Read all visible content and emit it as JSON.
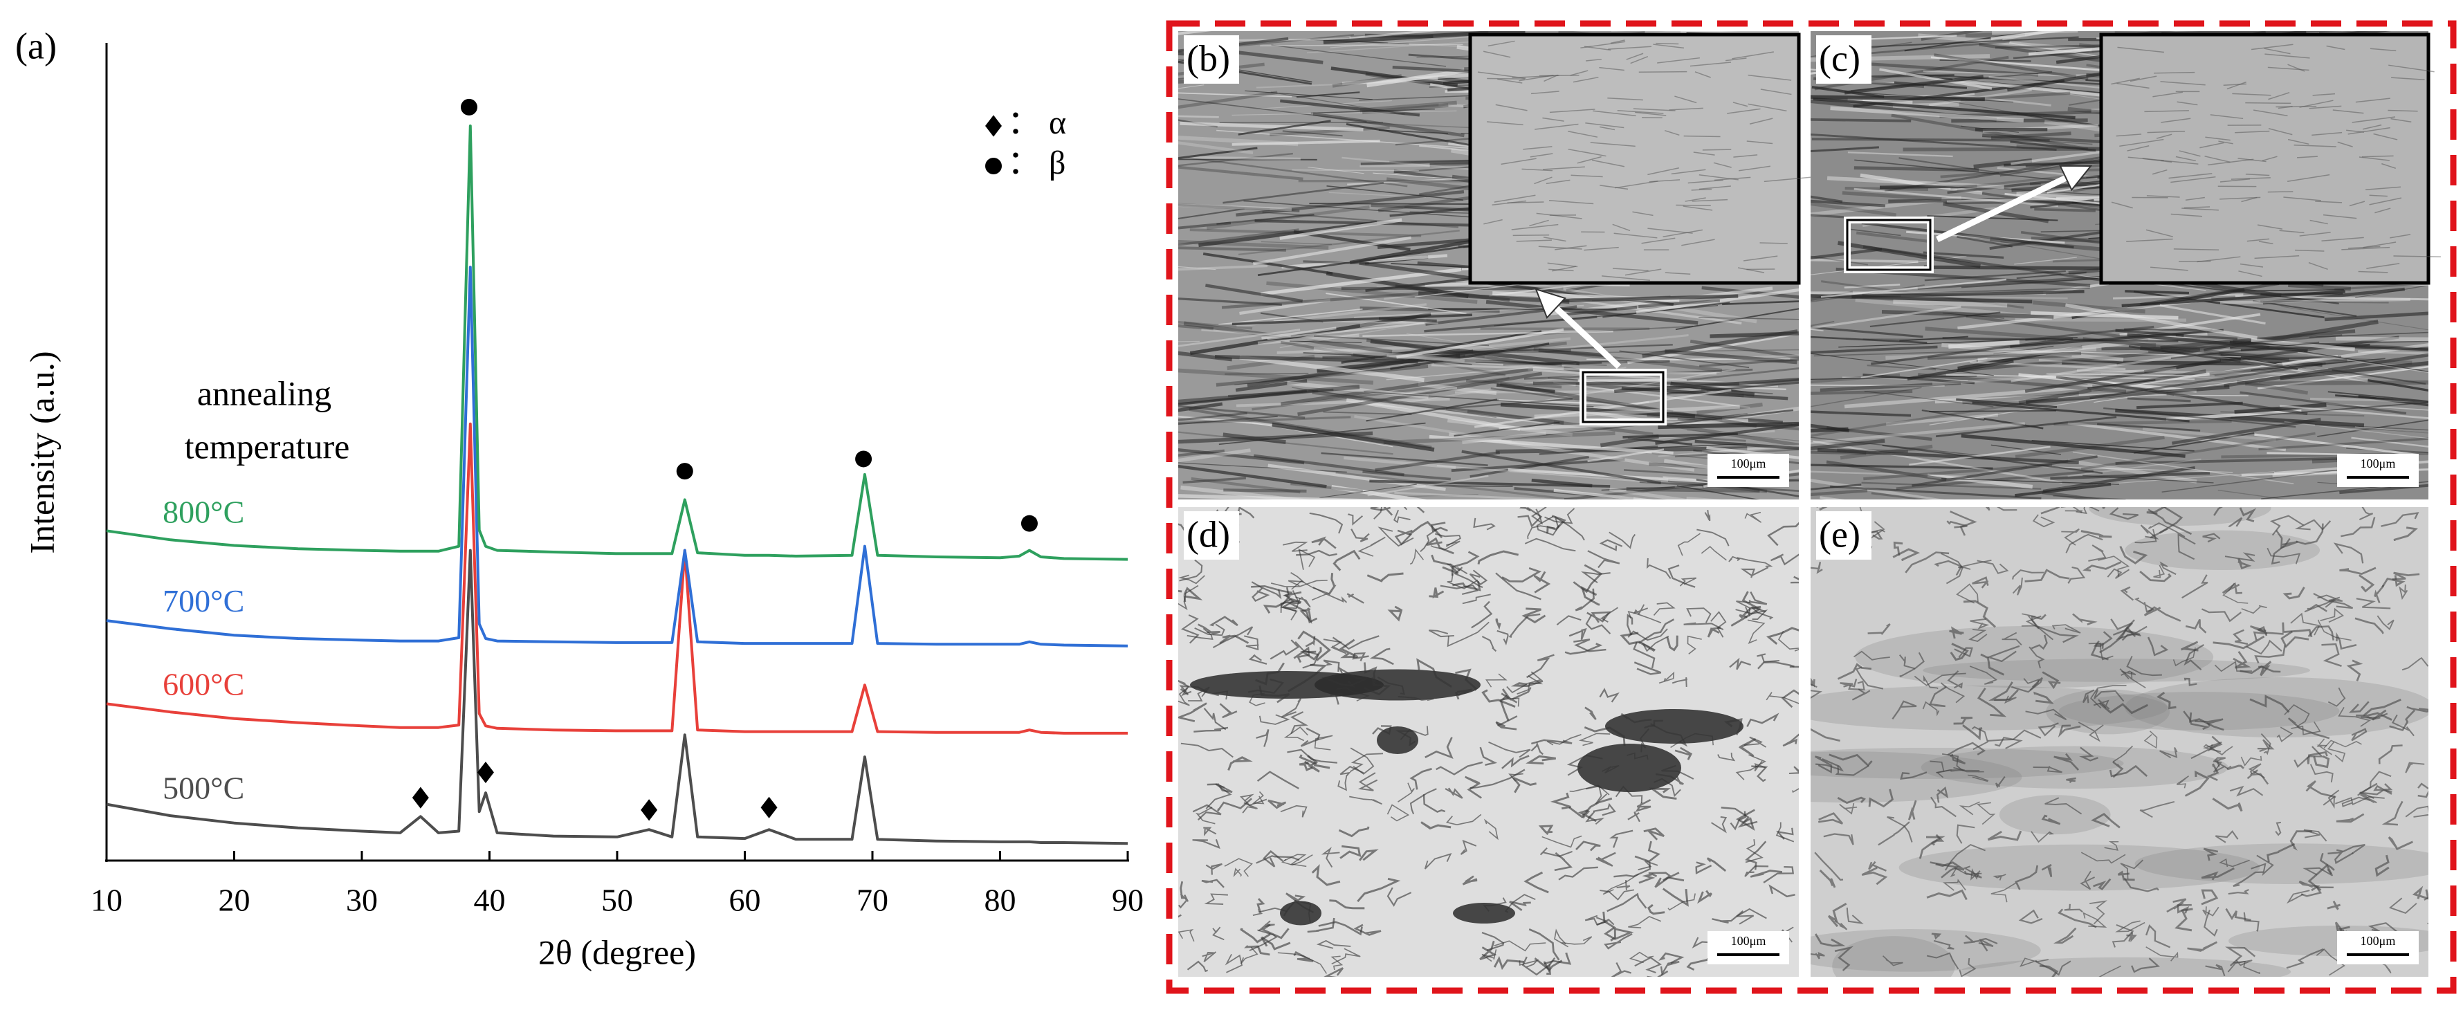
{
  "chart_data": {
    "type": "line",
    "panel_label": "(a)",
    "x_label": "2θ (degree)",
    "y_label": "Intensity (a.u.)",
    "annotation": [
      "annealing",
      "temperature"
    ],
    "x": [
      10,
      15,
      20,
      25,
      30,
      33,
      34.6,
      36,
      37.6,
      38.5,
      39.2,
      39.7,
      40.6,
      45,
      50,
      52.5,
      54.3,
      55.3,
      56.3,
      60,
      61.9,
      64,
      68.4,
      69.4,
      70.4,
      75,
      80,
      81.5,
      82.3,
      83.2,
      85,
      90
    ],
    "series": [
      {
        "name": "500°C",
        "color": "#4d4d4d",
        "values": [
          6.9,
          5.5,
          4.6,
          4.0,
          3.6,
          3.4,
          5.4,
          3.4,
          3.6,
          38,
          6,
          8.3,
          3.4,
          3.0,
          2.9,
          3.8,
          2.9,
          15.4,
          2.9,
          2.7,
          3.8,
          2.6,
          2.6,
          12.7,
          2.6,
          2.4,
          2.3,
          2.3,
          2.3,
          2.2,
          2.2,
          2.1
        ]
      },
      {
        "name": "600°C",
        "color": "#e8403a",
        "values": [
          19.2,
          18.2,
          17.4,
          16.9,
          16.5,
          16.3,
          16.3,
          16.3,
          16.6,
          53.5,
          18,
          16.5,
          16.2,
          16,
          15.9,
          15.9,
          15.9,
          38,
          16,
          15.8,
          15.8,
          15.8,
          15.8,
          21.5,
          15.8,
          15.7,
          15.7,
          15.7,
          16,
          15.7,
          15.6,
          15.6
        ]
      },
      {
        "name": "700°C",
        "color": "#2f6fd6",
        "values": [
          29.4,
          28.4,
          27.6,
          27.2,
          27,
          26.9,
          26.9,
          26.9,
          27.3,
          72.7,
          29,
          27.2,
          26.9,
          26.8,
          26.7,
          26.7,
          26.7,
          38,
          26.8,
          26.6,
          26.6,
          26.6,
          26.6,
          38.5,
          26.6,
          26.5,
          26.5,
          26.5,
          26.8,
          26.5,
          26.4,
          26.3
        ]
      },
      {
        "name": "800°C",
        "color": "#2ea05e",
        "values": [
          40.4,
          39.3,
          38.6,
          38.2,
          38,
          37.9,
          37.9,
          37.9,
          38.5,
          90,
          40.5,
          38.5,
          38,
          37.8,
          37.6,
          37.6,
          37.6,
          44.2,
          37.7,
          37.4,
          37.4,
          37.3,
          37.4,
          47.3,
          37.4,
          37.2,
          37.1,
          37.3,
          38,
          37.2,
          37,
          36.9
        ]
      }
    ],
    "phase_markers": [
      {
        "symbol": "diamond",
        "label": "： α",
        "x": [
          34.6,
          39.7,
          52.5,
          61.9
        ],
        "y": [
          7.7,
          10.8,
          6.2,
          6.5
        ]
      },
      {
        "symbol": "circle",
        "label": "： β",
        "x": [
          38.4,
          55.3,
          69.3,
          82.3
        ],
        "y": [
          92.3,
          47.7,
          49.2,
          41.3
        ]
      }
    ],
    "xlim": [
      10,
      90
    ],
    "xticks": [
      10,
      20,
      30,
      40,
      50,
      60,
      70,
      80,
      90
    ],
    "ylim": [
      0,
      100
    ]
  },
  "panels": [
    {
      "label": "(b)",
      "scale_bar": "100μm"
    },
    {
      "label": "(c)",
      "scale_bar": "100μm"
    },
    {
      "label": "(d)",
      "scale_bar": "100μm"
    },
    {
      "label": "(e)",
      "scale_bar": "100μm"
    }
  ]
}
